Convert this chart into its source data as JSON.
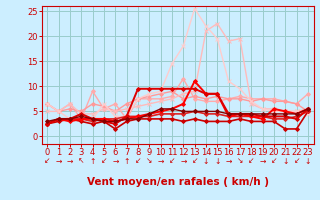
{
  "title": "",
  "xlabel": "Vent moyen/en rafales ( km/h )",
  "xlim": [
    -0.5,
    23.5
  ],
  "ylim": [
    -1.5,
    26
  ],
  "yticks": [
    0,
    5,
    10,
    15,
    20,
    25
  ],
  "xticks": [
    0,
    1,
    2,
    3,
    4,
    5,
    6,
    7,
    8,
    9,
    10,
    11,
    12,
    13,
    14,
    15,
    16,
    17,
    18,
    19,
    20,
    21,
    22,
    23
  ],
  "bg_color": "#cceeff",
  "grid_color": "#99cccc",
  "series": [
    {
      "y": [
        6.5,
        5.0,
        6.5,
        3.5,
        9.0,
        5.5,
        6.5,
        3.5,
        7.5,
        7.5,
        7.5,
        8.0,
        11.5,
        7.5,
        7.0,
        7.0,
        7.5,
        8.0,
        7.5,
        7.5,
        7.5,
        7.0,
        6.5,
        8.5
      ],
      "color": "#ffaaaa",
      "lw": 1.0,
      "marker": "D",
      "ms": 2.0
    },
    {
      "y": [
        6.5,
        5.0,
        5.5,
        5.0,
        6.5,
        6.0,
        5.0,
        6.5,
        7.5,
        8.0,
        8.5,
        9.0,
        7.5,
        8.0,
        7.5,
        8.0,
        7.5,
        7.5,
        7.0,
        7.5,
        7.0,
        7.0,
        6.5,
        5.0
      ],
      "color": "#ff9999",
      "lw": 1.0,
      "marker": "D",
      "ms": 2.0
    },
    {
      "y": [
        5.0,
        5.0,
        6.5,
        4.5,
        4.5,
        5.5,
        5.0,
        5.5,
        6.0,
        6.5,
        7.0,
        7.5,
        8.5,
        9.0,
        21.0,
        22.5,
        19.0,
        19.5,
        6.5,
        5.5,
        5.5,
        5.0,
        5.0,
        5.5
      ],
      "color": "#ffbbbb",
      "lw": 1.0,
      "marker": "x",
      "ms": 3.5
    },
    {
      "y": [
        6.5,
        5.0,
        3.5,
        3.5,
        3.5,
        6.5,
        4.0,
        4.0,
        7.5,
        8.5,
        9.0,
        14.5,
        18.0,
        25.5,
        22.0,
        19.5,
        11.0,
        9.5,
        7.0,
        5.5,
        5.0,
        5.0,
        5.0,
        4.5
      ],
      "color": "#ffcccc",
      "lw": 1.0,
      "marker": "x",
      "ms": 3.5
    },
    {
      "y": [
        2.5,
        3.0,
        3.5,
        3.0,
        2.5,
        3.0,
        1.5,
        3.0,
        3.5,
        3.5,
        3.5,
        3.5,
        3.0,
        3.5,
        3.0,
        3.0,
        3.0,
        3.5,
        3.0,
        3.0,
        3.0,
        1.5,
        1.5,
        5.0
      ],
      "color": "#cc0000",
      "lw": 1.2,
      "marker": "D",
      "ms": 2.0
    },
    {
      "y": [
        2.5,
        3.5,
        3.5,
        3.5,
        3.0,
        3.5,
        3.5,
        4.0,
        4.0,
        4.0,
        4.5,
        4.5,
        4.5,
        5.0,
        4.5,
        4.5,
        4.0,
        4.0,
        4.0,
        4.0,
        3.5,
        3.5,
        4.0,
        5.0
      ],
      "color": "#dd2222",
      "lw": 1.2,
      "marker": "D",
      "ms": 2.0
    },
    {
      "y": [
        2.5,
        3.5,
        3.0,
        3.5,
        3.5,
        3.5,
        3.0,
        3.5,
        4.0,
        4.5,
        5.0,
        5.5,
        6.5,
        11.0,
        8.5,
        8.5,
        4.0,
        4.5,
        4.0,
        3.5,
        5.5,
        5.0,
        4.5,
        5.5
      ],
      "color": "#ff0000",
      "lw": 1.4,
      "marker": "D",
      "ms": 2.0
    },
    {
      "y": [
        2.5,
        3.5,
        3.5,
        4.5,
        3.5,
        3.0,
        2.5,
        4.0,
        9.5,
        9.5,
        9.5,
        9.5,
        9.5,
        9.5,
        8.5,
        8.5,
        4.5,
        4.5,
        4.5,
        4.0,
        4.0,
        4.0,
        3.5,
        5.5
      ],
      "color": "#dd0000",
      "lw": 1.4,
      "marker": "D",
      "ms": 2.0
    },
    {
      "y": [
        3.0,
        3.5,
        3.5,
        4.0,
        3.5,
        3.0,
        3.0,
        3.5,
        3.5,
        4.5,
        5.5,
        5.5,
        5.0,
        5.0,
        5.0,
        5.0,
        4.5,
        4.5,
        4.5,
        4.5,
        4.5,
        4.5,
        4.5,
        5.5
      ],
      "color": "#880000",
      "lw": 1.0,
      "marker": "D",
      "ms": 2.0
    }
  ],
  "xlabel_color": "#cc0000",
  "xlabel_fontsize": 7.5,
  "tick_color": "#cc0000",
  "tick_fontsize": 6.0,
  "wind_arrows": [
    "↙",
    "→",
    "→",
    "↖",
    "↑",
    "↙",
    "→",
    "↑",
    "↙",
    "↘",
    "→",
    "↙",
    "→",
    "↙",
    "↓",
    "↓",
    "→",
    "↘",
    "↙",
    "→",
    "↙",
    "↓",
    "↙",
    "↓"
  ]
}
